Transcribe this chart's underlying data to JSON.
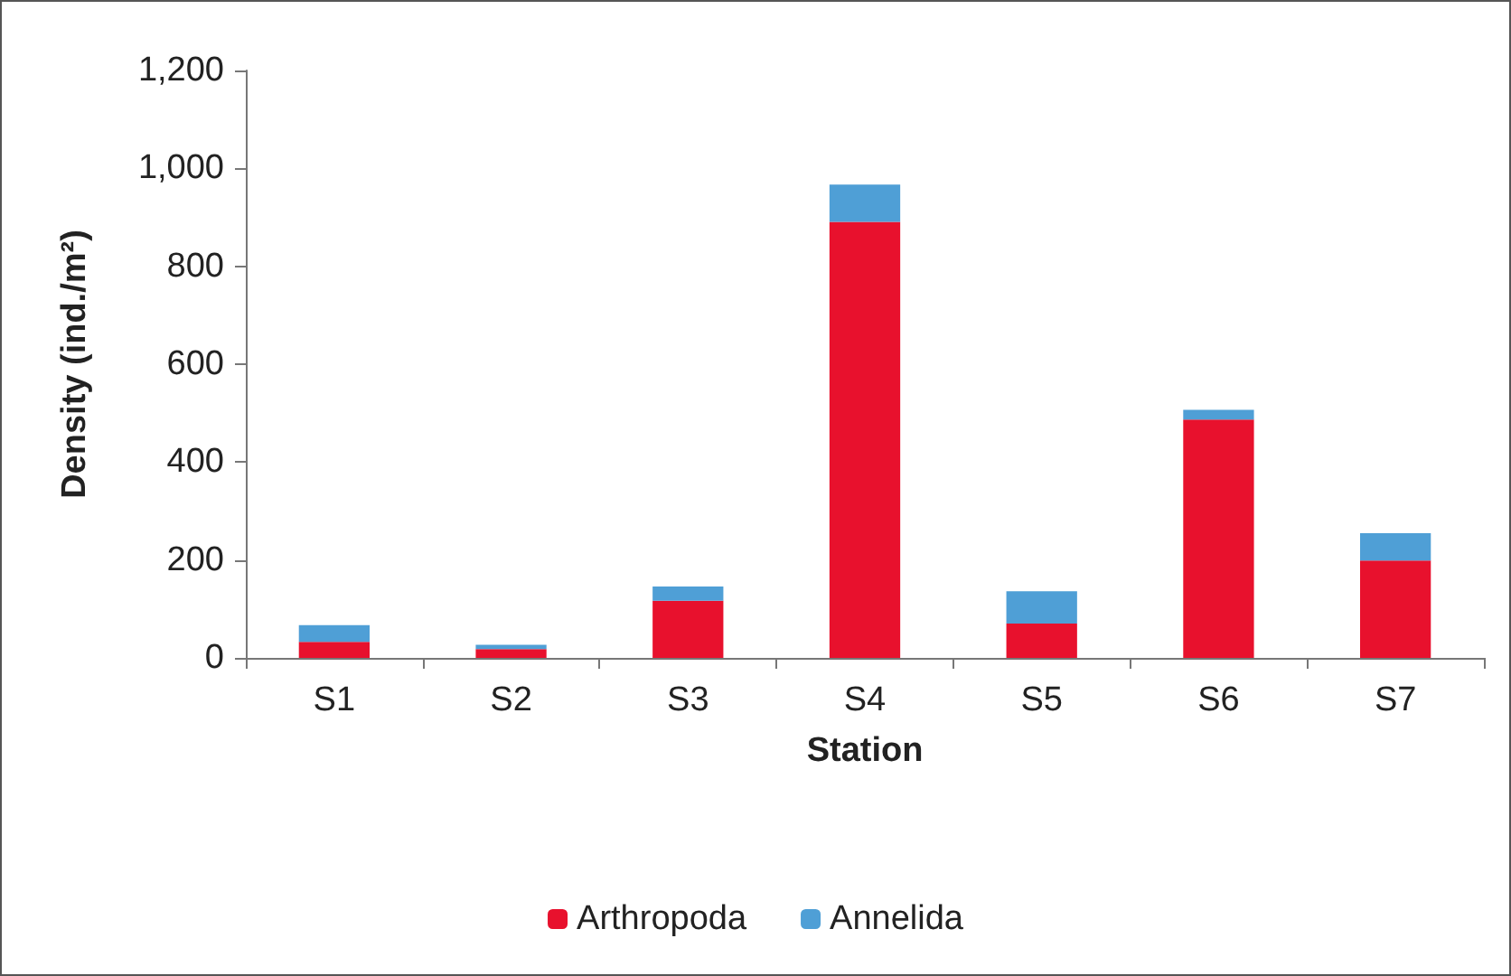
{
  "chart_data": {
    "type": "bar",
    "stacked": true,
    "xlabel": "Station",
    "ylabel": "Density (ind./m²)",
    "categories": [
      "S1",
      "S2",
      "S3",
      "S4",
      "S5",
      "S6",
      "S7"
    ],
    "series": [
      {
        "name": "Arthropoda",
        "color": "#e8112d",
        "values": [
          33,
          18,
          117,
          891,
          70,
          487,
          199
        ]
      },
      {
        "name": "Annelida",
        "color": "#4f9fd6",
        "values": [
          34,
          9,
          29,
          76,
          66,
          20,
          56
        ]
      }
    ],
    "ylim": [
      0,
      1200
    ],
    "yticks": [
      0,
      200,
      400,
      600,
      800,
      {
        "value": 1000,
        "label": "1,000"
      },
      {
        "value": 1200,
        "label": "1,200"
      }
    ],
    "grid": false,
    "legend": "bottom"
  }
}
